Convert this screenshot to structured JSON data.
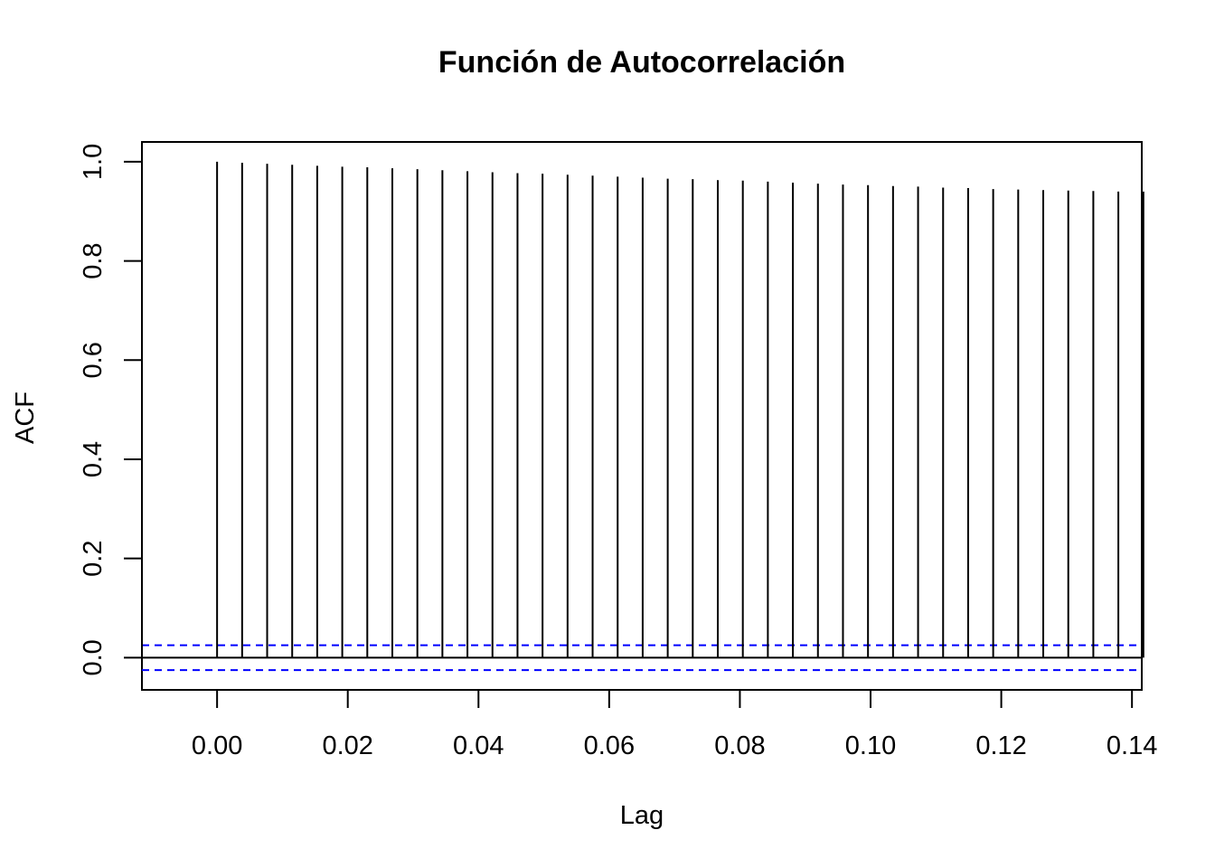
{
  "chart_data": {
    "type": "bar",
    "title": "Función de Autocorrelación",
    "xlabel": "Lag",
    "ylabel": "ACF",
    "xlim": [
      -0.0115,
      0.1415
    ],
    "ylim": [
      -0.065,
      1.04
    ],
    "x_ticks": [
      "0.00",
      "0.02",
      "0.04",
      "0.06",
      "0.08",
      "0.10",
      "0.12",
      "0.14"
    ],
    "y_ticks": [
      "0.0",
      "0.2",
      "0.4",
      "0.6",
      "0.8",
      "1.0"
    ],
    "lag_step": 0.003831,
    "acf": [
      1.0,
      0.998,
      0.996,
      0.994,
      0.992,
      0.99,
      0.989,
      0.987,
      0.985,
      0.983,
      0.981,
      0.979,
      0.977,
      0.976,
      0.974,
      0.972,
      0.97,
      0.968,
      0.966,
      0.965,
      0.963,
      0.962,
      0.96,
      0.958,
      0.956,
      0.954,
      0.953,
      0.951,
      0.95,
      0.948,
      0.947,
      0.945,
      0.944,
      0.943,
      0.942,
      0.941,
      0.94,
      0.94
    ],
    "confidence_bound": 0.025,
    "colors": {
      "bars": "#000000",
      "confidence": "#0000ff",
      "axes": "#000000"
    },
    "grid": false
  }
}
